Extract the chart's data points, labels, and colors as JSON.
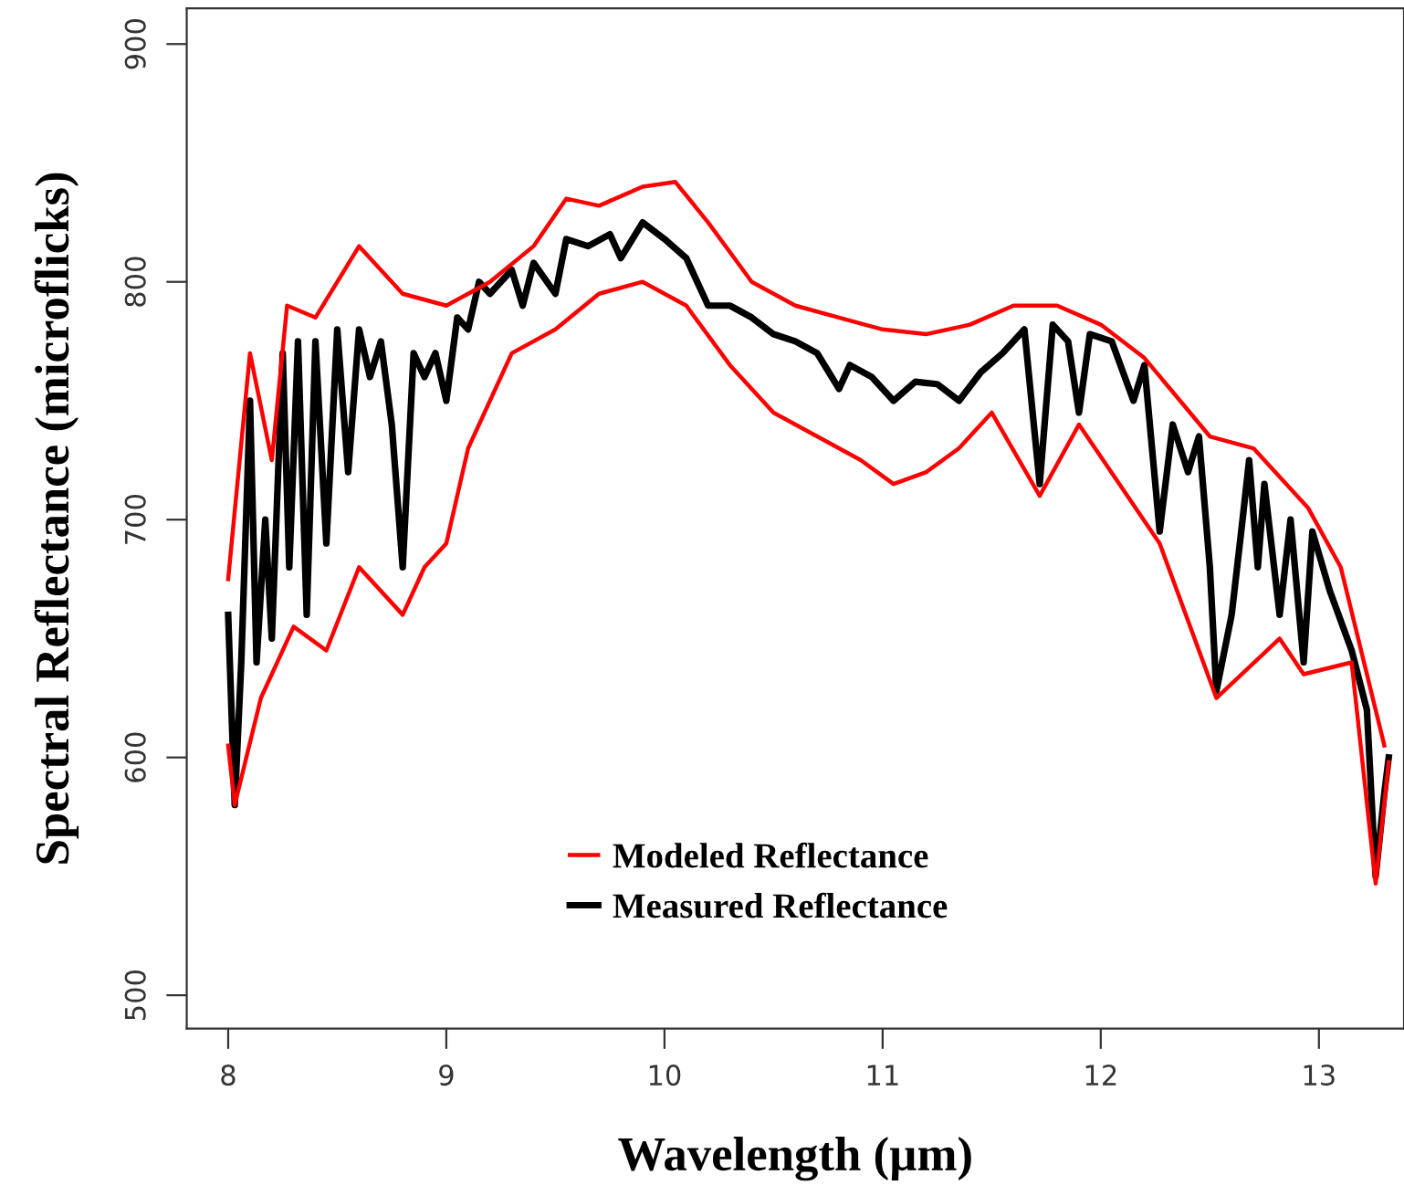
{
  "chart_data": {
    "type": "line",
    "xlabel": "Wavelength (µm)",
    "ylabel": "Spectral Reflectance (microflicks)",
    "xlim": [
      7.81,
      13.39
    ],
    "ylim": [
      486,
      915
    ],
    "xticks": [
      8,
      9,
      10,
      11,
      12,
      13
    ],
    "yticks": [
      500,
      600,
      700,
      800,
      900
    ],
    "grid": false,
    "legend": "bottom",
    "marker": "none",
    "line_style": "solid",
    "series": [
      {
        "name": "Modeled Reflectance",
        "color": "#ff0000",
        "x": [
          8.0,
          8.1,
          8.2,
          8.27,
          8.4,
          8.6,
          8.7,
          8.8,
          9.0,
          9.2,
          9.4,
          9.55,
          9.7,
          9.9,
          10.05,
          10.2,
          10.4,
          10.6,
          10.8,
          11.0,
          11.2,
          11.4,
          11.6,
          11.8,
          12.0,
          12.2,
          12.5,
          12.7,
          12.95,
          13.1,
          13.3
        ],
        "values": [
          675,
          770,
          725,
          790,
          785,
          815,
          805,
          795,
          790,
          800,
          815,
          835,
          832,
          840,
          842,
          825,
          800,
          790,
          785,
          780,
          778,
          782,
          790,
          790,
          782,
          768,
          735,
          730,
          705,
          680,
          605
        ]
      },
      {
        "color": "#ff0000",
        "x": [
          8.0,
          8.03,
          8.15,
          8.3,
          8.45,
          8.6,
          8.8,
          8.9,
          9.0,
          9.1,
          9.3,
          9.5,
          9.7,
          9.9,
          10.1,
          10.3,
          10.5,
          10.7,
          10.9,
          11.05,
          11.2,
          11.35,
          11.5,
          11.72,
          11.9,
          12.27,
          12.53,
          12.82,
          12.93,
          13.15,
          13.26,
          13.32
        ],
        "values": [
          605,
          580,
          625,
          655,
          645,
          680,
          660,
          680,
          690,
          730,
          770,
          780,
          795,
          800,
          790,
          765,
          745,
          735,
          725,
          715,
          720,
          730,
          745,
          710,
          740,
          690,
          625,
          650,
          635,
          640,
          547,
          598
        ]
      },
      {
        "name": "Measured Reflectance",
        "color": "#000000",
        "x": [
          8.0,
          8.03,
          8.06,
          8.1,
          8.13,
          8.17,
          8.2,
          8.25,
          8.28,
          8.32,
          8.36,
          8.4,
          8.45,
          8.5,
          8.55,
          8.6,
          8.65,
          8.7,
          8.75,
          8.8,
          8.85,
          8.9,
          8.95,
          9.0,
          9.05,
          9.1,
          9.15,
          9.2,
          9.3,
          9.35,
          9.4,
          9.5,
          9.55,
          9.65,
          9.75,
          9.8,
          9.9,
          10.0,
          10.1,
          10.2,
          10.3,
          10.4,
          10.5,
          10.6,
          10.7,
          10.8,
          10.85,
          10.95,
          11.05,
          11.15,
          11.25,
          11.35,
          11.45,
          11.55,
          11.65,
          11.72,
          11.78,
          11.85,
          11.9,
          11.95,
          12.05,
          12.15,
          12.2,
          12.27,
          12.33,
          12.4,
          12.45,
          12.5,
          12.53,
          12.6,
          12.65,
          12.68,
          12.72,
          12.75,
          12.82,
          12.87,
          12.93,
          12.97,
          13.05,
          13.15,
          13.22,
          13.26,
          13.3,
          13.32
        ],
        "values": [
          660,
          580,
          640,
          750,
          640,
          700,
          650,
          770,
          680,
          775,
          660,
          775,
          690,
          780,
          720,
          780,
          760,
          775,
          740,
          680,
          770,
          760,
          770,
          750,
          785,
          780,
          800,
          795,
          805,
          790,
          808,
          795,
          818,
          815,
          820,
          810,
          825,
          818,
          810,
          790,
          790,
          785,
          778,
          775,
          770,
          755,
          765,
          760,
          750,
          758,
          757,
          750,
          762,
          770,
          780,
          715,
          782,
          775,
          745,
          778,
          775,
          750,
          765,
          695,
          740,
          720,
          735,
          680,
          628,
          660,
          700,
          725,
          680,
          715,
          660,
          700,
          640,
          695,
          670,
          645,
          620,
          550,
          585,
          600
        ]
      }
    ]
  }
}
